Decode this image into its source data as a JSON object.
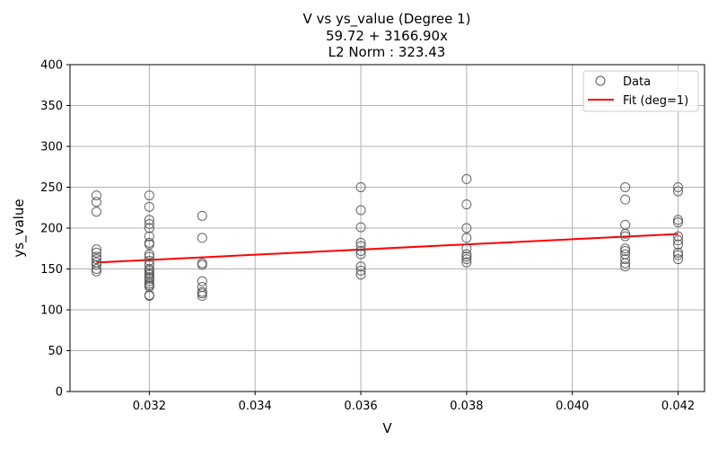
{
  "chart_data": {
    "type": "scatter",
    "title": "V vs ys_value (Degree 1)",
    "subtitle_equation": "59.72 + 3166.90x",
    "subtitle_norm": "L2 Norm : 323.43",
    "xlabel": "V",
    "ylabel": "ys_value",
    "xlim": [
      0.0305,
      0.0425
    ],
    "ylim": [
      0,
      400
    ],
    "xticks": [
      "0.032",
      "0.034",
      "0.036",
      "0.038",
      "0.040",
      "0.042"
    ],
    "yticks": [
      "0",
      "50",
      "100",
      "150",
      "200",
      "250",
      "300",
      "350",
      "400"
    ],
    "grid": true,
    "legend": {
      "position": "top-right",
      "entries": [
        "Data",
        "Fit (deg=1)"
      ]
    },
    "colors": {
      "data_marker": "#555555",
      "fit_line": "#ff0000",
      "grid": "#b0b0b0"
    },
    "series": [
      {
        "name": "Data",
        "points": [
          [
            0.031,
            147
          ],
          [
            0.031,
            150
          ],
          [
            0.031,
            155
          ],
          [
            0.031,
            158
          ],
          [
            0.031,
            162
          ],
          [
            0.031,
            165
          ],
          [
            0.031,
            170
          ],
          [
            0.031,
            174
          ],
          [
            0.031,
            220
          ],
          [
            0.031,
            232
          ],
          [
            0.031,
            240
          ],
          [
            0.032,
            117
          ],
          [
            0.032,
            118
          ],
          [
            0.032,
            128
          ],
          [
            0.032,
            130
          ],
          [
            0.032,
            132
          ],
          [
            0.032,
            135
          ],
          [
            0.032,
            138
          ],
          [
            0.032,
            140
          ],
          [
            0.032,
            143
          ],
          [
            0.032,
            145
          ],
          [
            0.032,
            148
          ],
          [
            0.032,
            150
          ],
          [
            0.032,
            155
          ],
          [
            0.032,
            160
          ],
          [
            0.032,
            165
          ],
          [
            0.032,
            168
          ],
          [
            0.032,
            180
          ],
          [
            0.032,
            182
          ],
          [
            0.032,
            190
          ],
          [
            0.032,
            200
          ],
          [
            0.032,
            205
          ],
          [
            0.032,
            210
          ],
          [
            0.032,
            226
          ],
          [
            0.032,
            240
          ],
          [
            0.033,
            117
          ],
          [
            0.033,
            120
          ],
          [
            0.033,
            122
          ],
          [
            0.033,
            128
          ],
          [
            0.033,
            135
          ],
          [
            0.033,
            155
          ],
          [
            0.033,
            157
          ],
          [
            0.033,
            188
          ],
          [
            0.033,
            215
          ],
          [
            0.036,
            143
          ],
          [
            0.036,
            148
          ],
          [
            0.036,
            153
          ],
          [
            0.036,
            168
          ],
          [
            0.036,
            172
          ],
          [
            0.036,
            178
          ],
          [
            0.036,
            182
          ],
          [
            0.036,
            201
          ],
          [
            0.036,
            222
          ],
          [
            0.036,
            250
          ],
          [
            0.038,
            158
          ],
          [
            0.038,
            162
          ],
          [
            0.038,
            165
          ],
          [
            0.038,
            168
          ],
          [
            0.038,
            175
          ],
          [
            0.038,
            188
          ],
          [
            0.038,
            200
          ],
          [
            0.038,
            229
          ],
          [
            0.038,
            260
          ],
          [
            0.041,
            153
          ],
          [
            0.041,
            157
          ],
          [
            0.041,
            162
          ],
          [
            0.041,
            168
          ],
          [
            0.041,
            172
          ],
          [
            0.041,
            175
          ],
          [
            0.041,
            190
          ],
          [
            0.041,
            193
          ],
          [
            0.041,
            204
          ],
          [
            0.041,
            235
          ],
          [
            0.041,
            250
          ],
          [
            0.042,
            162
          ],
          [
            0.042,
            167
          ],
          [
            0.042,
            170
          ],
          [
            0.042,
            180
          ],
          [
            0.042,
            185
          ],
          [
            0.042,
            190
          ],
          [
            0.042,
            207
          ],
          [
            0.042,
            210
          ],
          [
            0.042,
            245
          ],
          [
            0.042,
            250
          ]
        ]
      },
      {
        "name": "Fit (deg=1)",
        "intercept": 59.72,
        "slope": 3166.9,
        "x_range": [
          0.031,
          0.042
        ]
      }
    ]
  }
}
